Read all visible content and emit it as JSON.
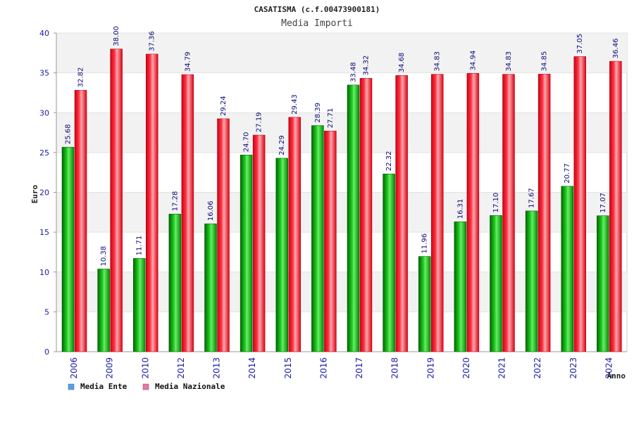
{
  "chart_data": {
    "type": "bar",
    "title": "CASATISMA (c.f.00473900181)",
    "subtitle": "Media Importi",
    "xlabel": "Anno",
    "ylabel": "Euro",
    "ylim": [
      0,
      40
    ],
    "yticks": [
      0,
      5,
      10,
      15,
      20,
      25,
      30,
      35,
      40
    ],
    "categories": [
      "2006",
      "2009",
      "2010",
      "2012",
      "2013",
      "2014",
      "2015",
      "2016",
      "2017",
      "2018",
      "2019",
      "2020",
      "2021",
      "2022",
      "2023",
      "2024"
    ],
    "series": [
      {
        "name": "Media Ente",
        "color": "#00aa00",
        "values": [
          25.68,
          10.38,
          11.71,
          17.28,
          16.06,
          24.7,
          24.29,
          28.39,
          33.48,
          22.32,
          11.96,
          16.31,
          17.1,
          17.67,
          20.77,
          17.07
        ],
        "labels": [
          "25.68",
          "10.38",
          "11.71",
          "17.28",
          "16.06",
          "24.70",
          "24.29",
          "28.39",
          "33.48",
          "22.32",
          "11.96",
          "16.31",
          "17.10",
          "17.67",
          "20.77",
          "17.07"
        ]
      },
      {
        "name": "Media Nazionale",
        "color": "#ee1122",
        "values": [
          32.82,
          38.0,
          37.36,
          34.79,
          29.24,
          27.19,
          29.43,
          27.71,
          34.32,
          34.68,
          34.83,
          34.94,
          34.83,
          34.85,
          37.05,
          36.46
        ],
        "labels": [
          "32.82",
          "38.00",
          "37.36",
          "34.79",
          "29.24",
          "27.19",
          "29.43",
          "27.71",
          "34.32",
          "34.68",
          "34.83",
          "34.94",
          "34.83",
          "34.85",
          "37.05",
          "36.46"
        ]
      }
    ],
    "legend": [
      {
        "label": "Media Ente",
        "color": "#5aa0e6"
      },
      {
        "label": "Media Nazionale",
        "color": "#e07aa8"
      }
    ],
    "grid": true,
    "legend_position": "bottom-left"
  }
}
